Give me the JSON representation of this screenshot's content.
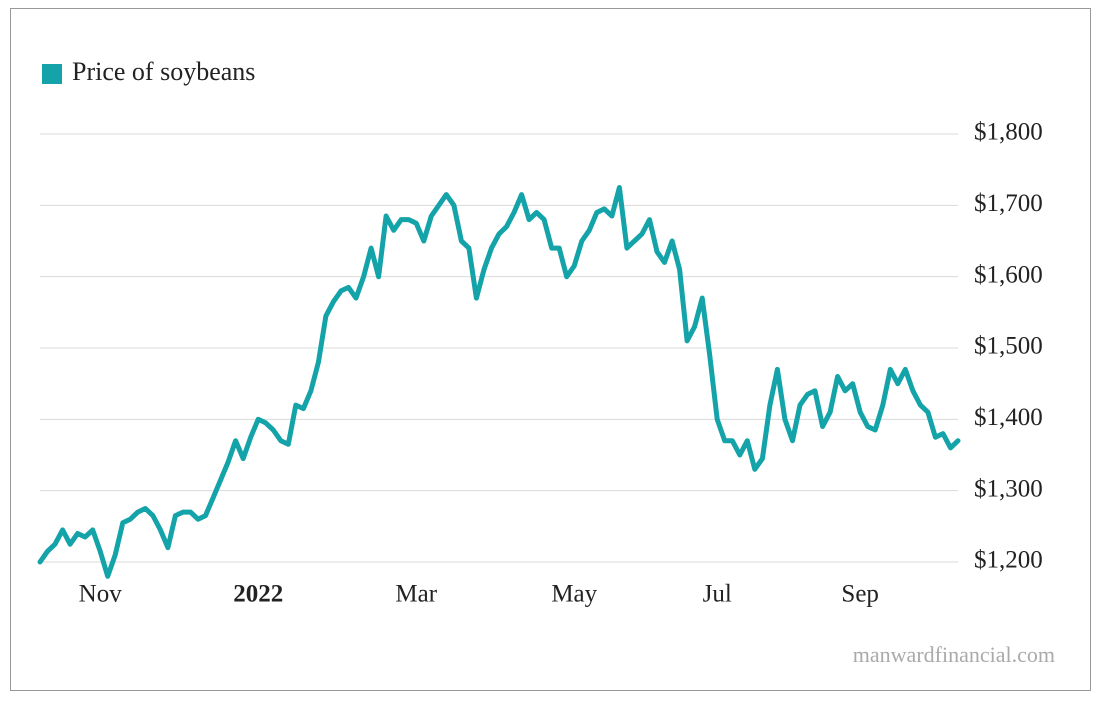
{
  "chart_data": {
    "type": "line",
    "categories": [
      null,
      null,
      null,
      null,
      null,
      null,
      null,
      null,
      "Nov",
      null,
      null,
      null,
      null,
      null,
      null,
      null,
      null,
      null,
      null,
      null,
      null,
      null,
      null,
      null,
      null,
      null,
      null,
      null,
      null,
      "2022",
      null,
      null,
      null,
      null,
      null,
      null,
      null,
      null,
      null,
      null,
      null,
      null,
      null,
      null,
      null,
      null,
      null,
      null,
      null,
      null,
      "Mar",
      null,
      null,
      null,
      null,
      null,
      null,
      null,
      null,
      null,
      null,
      null,
      null,
      null,
      null,
      null,
      null,
      null,
      null,
      null,
      null,
      "May",
      null,
      null,
      null,
      null,
      null,
      null,
      null,
      null,
      null,
      null,
      null,
      null,
      null,
      null,
      null,
      null,
      null,
      null,
      "Jul",
      null,
      null,
      null,
      null,
      null,
      null,
      null,
      null,
      null,
      null,
      null,
      null,
      null,
      null,
      null,
      null,
      null,
      null,
      "Sep",
      null,
      null,
      null,
      null,
      null,
      null,
      null,
      null,
      null,
      null,
      null,
      null,
      null
    ],
    "series": [
      {
        "name": "Price of soybeans",
        "color": "#13a3a8",
        "values": [
          1200,
          1215,
          1225,
          1245,
          1225,
          1240,
          1235,
          1245,
          1215,
          1180,
          1210,
          1255,
          1260,
          1270,
          1275,
          1265,
          1245,
          1220,
          1265,
          1270,
          1270,
          1260,
          1265,
          1290,
          1315,
          1340,
          1370,
          1345,
          1375,
          1400,
          1395,
          1385,
          1370,
          1365,
          1420,
          1415,
          1440,
          1480,
          1545,
          1565,
          1580,
          1585,
          1570,
          1600,
          1640,
          1600,
          1685,
          1665,
          1680,
          1680,
          1675,
          1650,
          1685,
          1700,
          1715,
          1700,
          1650,
          1640,
          1570,
          1610,
          1640,
          1660,
          1670,
          1690,
          1715,
          1680,
          1690,
          1680,
          1640,
          1640,
          1600,
          1615,
          1650,
          1665,
          1690,
          1695,
          1685,
          1725,
          1640,
          1650,
          1660,
          1680,
          1635,
          1620,
          1650,
          1610,
          1510,
          1530,
          1570,
          1490,
          1400,
          1370,
          1370,
          1350,
          1370,
          1330,
          1345,
          1420,
          1470,
          1400,
          1370,
          1420,
          1435,
          1440,
          1390,
          1410,
          1460,
          1440,
          1450,
          1410,
          1390,
          1385,
          1420,
          1470,
          1450,
          1470,
          1440,
          1420,
          1410,
          1375,
          1380,
          1360,
          1370
        ]
      }
    ],
    "ylim": [
      1200,
      1800
    ],
    "yticks": [
      {
        "value": 1200,
        "label": "$1,200"
      },
      {
        "value": 1300,
        "label": "$1,300"
      },
      {
        "value": 1400,
        "label": "$1,400"
      },
      {
        "value": 1500,
        "label": "$1,500"
      },
      {
        "value": 1600,
        "label": "$1,600"
      },
      {
        "value": 1700,
        "label": "$1,700"
      },
      {
        "value": 1800,
        "label": "$1,800"
      }
    ],
    "grid": true,
    "legend": "top-left",
    "source": "manwardfinancial.com"
  }
}
